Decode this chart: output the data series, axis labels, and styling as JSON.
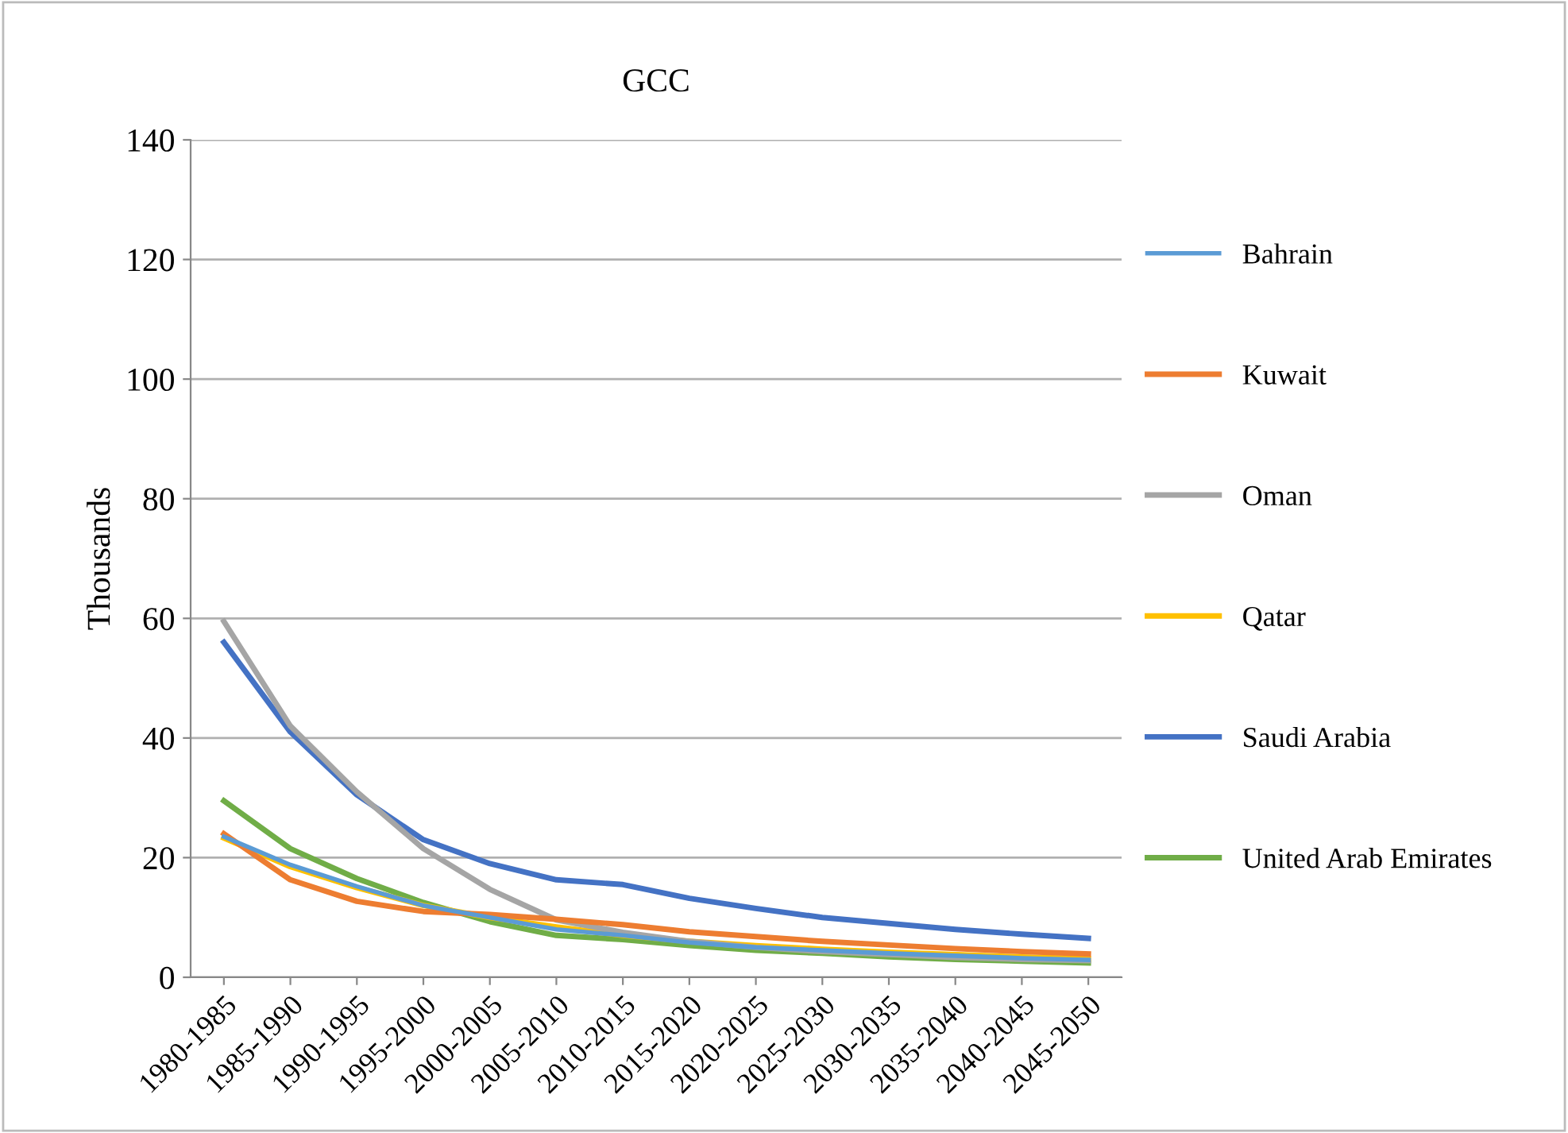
{
  "chart_data": {
    "type": "line",
    "title": "GCC",
    "ylabel": "Thousands",
    "categories": [
      "1980-1985",
      "1985-1990",
      "1990-1995",
      "1995-2000",
      "2000-2005",
      "2005-2010",
      "2010-2015",
      "2015-2020",
      "2020-2025",
      "2025-2030",
      "2030-2035",
      "2035-2040",
      "2040-2045",
      "2045-2050"
    ],
    "series": [
      {
        "name": "Bahrain",
        "color": "#5b9bd5",
        "values": [
          23.5,
          18.8,
          15.2,
          12,
          10,
          8,
          7,
          5.8,
          5,
          4.5,
          4,
          3.6,
          3.2,
          2.9
        ]
      },
      {
        "name": "Kuwait",
        "color": "#ed7d31",
        "values": [
          24,
          16.3,
          12.7,
          11,
          10.5,
          9.7,
          8.8,
          7.6,
          6.8,
          6.0,
          5.4,
          4.8,
          4.3,
          3.9
        ]
      },
      {
        "name": "Oman",
        "color": "#a5a5a5",
        "values": [
          59.5,
          42,
          31,
          21.5,
          14.7,
          9.6,
          7.5,
          6,
          5,
          4.3,
          3.8,
          3.3,
          3.0,
          2.8
        ]
      },
      {
        "name": "Qatar",
        "color": "#ffc000",
        "values": [
          23.3,
          18.5,
          15,
          12,
          10,
          8.4,
          7,
          6,
          5.3,
          4.7,
          4.2,
          3.8,
          3.4,
          3.1
        ]
      },
      {
        "name": "Saudi Arabia",
        "color": "#4472c4",
        "values": [
          56,
          41,
          30.5,
          23,
          19,
          16.3,
          15.5,
          13.2,
          11.5,
          10,
          9,
          8,
          7.2,
          6.5
        ]
      },
      {
        "name": "United Arab Emirates",
        "color": "#70ad47",
        "values": [
          29.5,
          21.5,
          16.5,
          12.5,
          9.3,
          7,
          6.3,
          5.3,
          4.5,
          4,
          3.4,
          3.0,
          2.7,
          2.4
        ]
      }
    ],
    "ylim": [
      0,
      140
    ],
    "yticks": [
      0,
      20,
      40,
      60,
      80,
      100,
      120,
      140
    ],
    "grid": "y",
    "legend": "right",
    "marker": "none",
    "line_style": "solid"
  }
}
